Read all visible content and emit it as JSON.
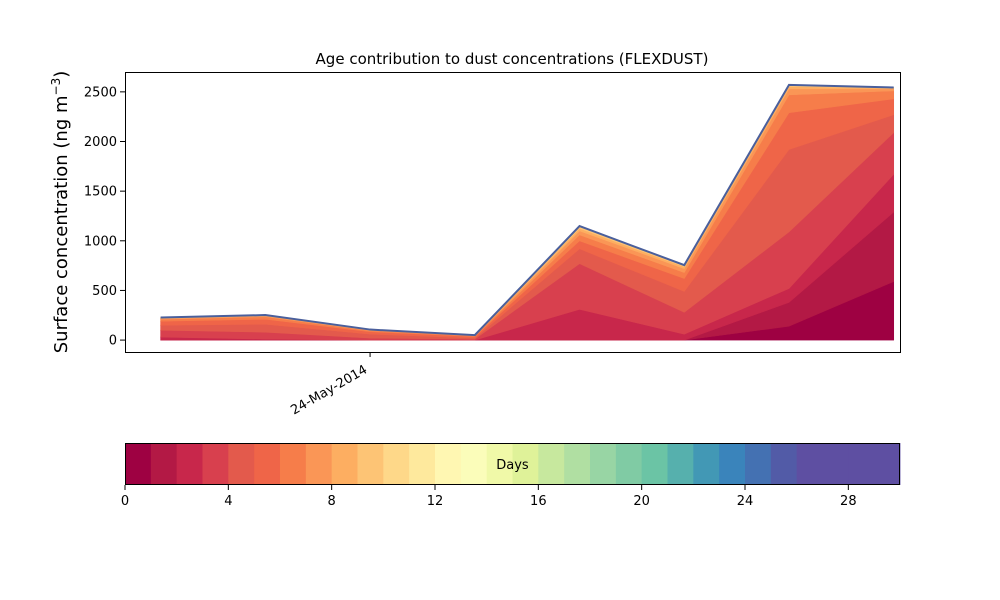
{
  "chart_data": {
    "type": "area",
    "stacked": true,
    "title": "Age contribution to dust concentrations (FLEXDUST)",
    "ylabel": "Surface concentration (ng m",
    "ylabel_sup": "−3",
    "ylabel_close": ")",
    "ylim": [
      -120,
      2700
    ],
    "yticks": [
      0,
      500,
      1000,
      1500,
      2000,
      2500
    ],
    "ytick_labels": [
      "0",
      "500",
      "1000",
      "1500",
      "2000",
      "2500"
    ],
    "xlim": [
      0,
      3.7
    ],
    "x": [
      0.17,
      0.67,
      1.17,
      1.67,
      2.17,
      2.67,
      3.17,
      3.67
    ],
    "xtick_value": 1.17,
    "xtick_label": "24-May-2014",
    "grid": false,
    "total_outline_color": "#4a5f9c",
    "layers": [
      {
        "age_days": 0,
        "values": [
          0,
          0,
          0,
          0,
          0,
          0,
          140,
          590
        ],
        "color": "#9e0142"
      },
      {
        "age_days": 1,
        "values": [
          0,
          0,
          0,
          0,
          0,
          0,
          240,
          700
        ],
        "color": "#b31945"
      },
      {
        "age_days": 2,
        "values": [
          30,
          10,
          0,
          0,
          310,
          60,
          140,
          380
        ],
        "color": "#c8274b"
      },
      {
        "age_days": 3,
        "values": [
          70,
          70,
          20,
          10,
          460,
          220,
          570,
          420
        ],
        "color": "#d8404e"
      },
      {
        "age_days": 4,
        "values": [
          50,
          80,
          40,
          10,
          150,
          210,
          830,
          180
        ],
        "color": "#e35a4c"
      },
      {
        "age_days": 5,
        "values": [
          40,
          50,
          25,
          15,
          80,
          130,
          370,
          160
        ],
        "color": "#ef6548"
      },
      {
        "age_days": 6,
        "values": [
          20,
          25,
          10,
          8,
          60,
          60,
          180,
          80
        ],
        "color": "#f67d4a"
      },
      {
        "age_days": 7,
        "values": [
          8,
          8,
          5,
          4,
          40,
          40,
          60,
          20
        ],
        "color": "#fa9656"
      },
      {
        "age_days": 8,
        "values": [
          4,
          4,
          3,
          2,
          25,
          20,
          25,
          8
        ],
        "color": "#fdae61"
      },
      {
        "age_days": 9,
        "values": [
          3,
          3,
          2,
          1,
          15,
          10,
          10,
          4
        ],
        "color": "#fdc475"
      },
      {
        "age_days": 10,
        "values": [
          2,
          2,
          1,
          0,
          8,
          5,
          5,
          2
        ],
        "color": "#fed889"
      }
    ],
    "colorbar": {
      "label": "Days",
      "min": 0,
      "max": 30,
      "step": 1,
      "ticks": [
        0,
        4,
        8,
        12,
        16,
        20,
        24,
        28
      ],
      "tick_labels": [
        "0",
        "4",
        "8",
        "12",
        "16",
        "20",
        "24",
        "28"
      ],
      "colors": [
        "#9e0142",
        "#b31945",
        "#c8274b",
        "#d8404e",
        "#e35a4c",
        "#ef6548",
        "#f67d4a",
        "#fa9656",
        "#fdae61",
        "#fdc475",
        "#fed889",
        "#fee99d",
        "#fff7b2",
        "#fbfdba",
        "#f0f9a8",
        "#dff299",
        "#c7e89e",
        "#b0dfa2",
        "#98d5a4",
        "#80cba4",
        "#6bc4a5",
        "#56b0ad",
        "#4298b5",
        "#3a84bb",
        "#4471b2",
        "#525ba7",
        "#5e4fa2",
        "#5e4fa2",
        "#5e4fa2",
        "#5e4fa2"
      ]
    }
  }
}
